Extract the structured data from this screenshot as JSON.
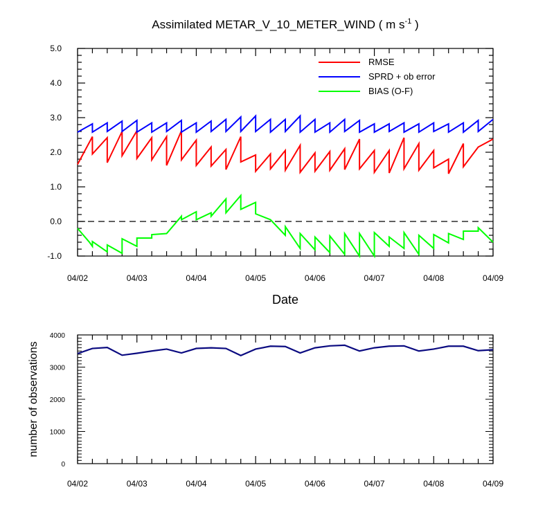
{
  "title": "Assimilated METAR_V_10_METER_WIND ( m s",
  "title_unit_exp": "-1",
  "title_close": " )",
  "top_panel": {
    "xlabel": "Date",
    "legend": [
      {
        "label": "RMSE",
        "color": "#ff0000"
      },
      {
        "label": "SPRD + ob error",
        "color": "#0000ff"
      },
      {
        "label": "BIAS (O-F)",
        "color": "#00ff00"
      }
    ],
    "y_ticks": [
      "5.0",
      "4.0",
      "3.0",
      "2.0",
      "1.0",
      "0.0",
      "-1.0"
    ]
  },
  "bottom_panel": {
    "ylabel": "number of observations",
    "y_ticks": [
      "4000",
      "3000",
      "2000",
      "1000",
      "0"
    ]
  },
  "x_tick_labels": [
    "04/02",
    "04/03",
    "04/04",
    "04/05",
    "04/06",
    "04/07",
    "04/08",
    "04/09"
  ],
  "chart_data": [
    {
      "type": "line",
      "title": "Assimilated METAR_V_10_METER_WIND ( m s-1 )",
      "xlabel": "Date",
      "ylabel": "",
      "x_unit": "days",
      "xlim": [
        0,
        7
      ],
      "ylim": [
        -1.0,
        5.0
      ],
      "grid": false,
      "legend_position": "top-right",
      "reference_lines": [
        {
          "y": 0.0,
          "style": "dashed"
        }
      ],
      "series": [
        {
          "name": "RMSE",
          "color": "#ff0000",
          "points": [
            [
              0.0,
              1.65
            ],
            [
              0.25,
              2.45
            ],
            [
              0.25,
              1.95
            ],
            [
              0.5,
              2.42
            ],
            [
              0.5,
              1.7
            ],
            [
              0.75,
              2.6
            ],
            [
              0.75,
              1.9
            ],
            [
              1.0,
              2.62
            ],
            [
              1.0,
              1.82
            ],
            [
              1.25,
              2.42
            ],
            [
              1.25,
              1.78
            ],
            [
              1.5,
              2.45
            ],
            [
              1.5,
              1.62
            ],
            [
              1.75,
              2.62
            ],
            [
              1.75,
              1.78
            ],
            [
              2.0,
              2.35
            ],
            [
              2.0,
              1.62
            ],
            [
              2.25,
              2.15
            ],
            [
              2.25,
              1.6
            ],
            [
              2.5,
              2.08
            ],
            [
              2.5,
              1.5
            ],
            [
              2.75,
              2.45
            ],
            [
              2.75,
              1.72
            ],
            [
              3.0,
              1.92
            ],
            [
              3.0,
              1.45
            ],
            [
              3.25,
              1.95
            ],
            [
              3.25,
              1.52
            ],
            [
              3.5,
              2.05
            ],
            [
              3.5,
              1.48
            ],
            [
              3.75,
              2.2
            ],
            [
              3.75,
              1.42
            ],
            [
              4.0,
              1.98
            ],
            [
              4.0,
              1.45
            ],
            [
              4.25,
              2.02
            ],
            [
              4.25,
              1.48
            ],
            [
              4.5,
              2.1
            ],
            [
              4.5,
              1.5
            ],
            [
              4.75,
              2.38
            ],
            [
              4.75,
              1.52
            ],
            [
              5.0,
              2.05
            ],
            [
              5.0,
              1.42
            ],
            [
              5.25,
              2.05
            ],
            [
              5.25,
              1.4
            ],
            [
              5.5,
              2.42
            ],
            [
              5.5,
              1.52
            ],
            [
              5.75,
              2.25
            ],
            [
              5.75,
              1.48
            ],
            [
              6.0,
              2.05
            ],
            [
              6.0,
              1.55
            ],
            [
              6.25,
              1.8
            ],
            [
              6.25,
              1.38
            ],
            [
              6.5,
              2.25
            ],
            [
              6.5,
              1.58
            ],
            [
              6.75,
              2.15
            ],
            [
              7.0,
              2.38
            ]
          ]
        },
        {
          "name": "SPRD + ob error",
          "color": "#0000ff",
          "points": [
            [
              0.0,
              2.58
            ],
            [
              0.25,
              2.82
            ],
            [
              0.25,
              2.58
            ],
            [
              0.5,
              2.85
            ],
            [
              0.5,
              2.6
            ],
            [
              0.75,
              2.9
            ],
            [
              0.75,
              2.6
            ],
            [
              1.0,
              2.92
            ],
            [
              1.0,
              2.58
            ],
            [
              1.25,
              2.85
            ],
            [
              1.25,
              2.58
            ],
            [
              1.5,
              2.85
            ],
            [
              1.5,
              2.6
            ],
            [
              1.75,
              2.92
            ],
            [
              1.75,
              2.58
            ],
            [
              2.0,
              2.85
            ],
            [
              2.0,
              2.58
            ],
            [
              2.25,
              2.9
            ],
            [
              2.25,
              2.6
            ],
            [
              2.5,
              2.95
            ],
            [
              2.5,
              2.6
            ],
            [
              2.75,
              3.02
            ],
            [
              2.75,
              2.6
            ],
            [
              3.0,
              3.05
            ],
            [
              3.0,
              2.6
            ],
            [
              3.25,
              2.95
            ],
            [
              3.25,
              2.58
            ],
            [
              3.5,
              2.95
            ],
            [
              3.5,
              2.6
            ],
            [
              3.75,
              3.05
            ],
            [
              3.75,
              2.58
            ],
            [
              4.0,
              2.95
            ],
            [
              4.0,
              2.58
            ],
            [
              4.25,
              2.85
            ],
            [
              4.25,
              2.58
            ],
            [
              4.5,
              2.95
            ],
            [
              4.5,
              2.6
            ],
            [
              4.75,
              2.92
            ],
            [
              4.75,
              2.58
            ],
            [
              5.0,
              2.82
            ],
            [
              5.0,
              2.58
            ],
            [
              5.25,
              2.82
            ],
            [
              5.25,
              2.6
            ],
            [
              5.5,
              2.85
            ],
            [
              5.5,
              2.58
            ],
            [
              5.75,
              2.82
            ],
            [
              5.75,
              2.58
            ],
            [
              6.0,
              2.85
            ],
            [
              6.0,
              2.6
            ],
            [
              6.25,
              2.82
            ],
            [
              6.25,
              2.58
            ],
            [
              6.5,
              2.85
            ],
            [
              6.5,
              2.58
            ],
            [
              6.75,
              2.92
            ],
            [
              6.75,
              2.6
            ],
            [
              7.0,
              2.95
            ]
          ]
        },
        {
          "name": "BIAS (O-F)",
          "color": "#00ff00",
          "points": [
            [
              0.0,
              -0.2
            ],
            [
              0.2,
              -0.6
            ],
            [
              0.25,
              -0.72
            ],
            [
              0.25,
              -0.58
            ],
            [
              0.5,
              -0.88
            ],
            [
              0.5,
              -0.68
            ],
            [
              0.75,
              -0.92
            ],
            [
              0.75,
              -0.5
            ],
            [
              1.0,
              -0.72
            ],
            [
              1.0,
              -0.48
            ],
            [
              1.25,
              -0.48
            ],
            [
              1.25,
              -0.38
            ],
            [
              1.5,
              -0.35
            ],
            [
              1.75,
              0.15
            ],
            [
              1.75,
              0.05
            ],
            [
              2.0,
              0.28
            ],
            [
              2.0,
              0.05
            ],
            [
              2.25,
              0.25
            ],
            [
              2.25,
              0.15
            ],
            [
              2.5,
              0.65
            ],
            [
              2.5,
              0.25
            ],
            [
              2.75,
              0.75
            ],
            [
              2.75,
              0.35
            ],
            [
              3.0,
              0.55
            ],
            [
              3.0,
              0.22
            ],
            [
              3.25,
              0.05
            ],
            [
              3.5,
              -0.4
            ],
            [
              3.5,
              -0.15
            ],
            [
              3.75,
              -0.78
            ],
            [
              3.75,
              -0.35
            ],
            [
              4.0,
              -0.82
            ],
            [
              4.0,
              -0.45
            ],
            [
              4.25,
              -0.9
            ],
            [
              4.25,
              -0.42
            ],
            [
              4.5,
              -0.95
            ],
            [
              4.5,
              -0.35
            ],
            [
              4.75,
              -1.0
            ],
            [
              4.75,
              -0.35
            ],
            [
              5.0,
              -1.0
            ],
            [
              5.0,
              -0.32
            ],
            [
              5.25,
              -0.72
            ],
            [
              5.25,
              -0.45
            ],
            [
              5.5,
              -0.78
            ],
            [
              5.5,
              -0.32
            ],
            [
              5.75,
              -0.95
            ],
            [
              5.75,
              -0.4
            ],
            [
              6.0,
              -0.78
            ],
            [
              6.0,
              -0.38
            ],
            [
              6.25,
              -0.62
            ],
            [
              6.25,
              -0.35
            ],
            [
              6.5,
              -0.52
            ],
            [
              6.5,
              -0.28
            ],
            [
              6.75,
              -0.28
            ],
            [
              6.75,
              -0.18
            ],
            [
              7.0,
              -0.6
            ]
          ]
        }
      ]
    },
    {
      "type": "line",
      "xlabel": "",
      "ylabel": "number of observations",
      "x_unit": "days",
      "xlim": [
        0,
        7
      ],
      "ylim": [
        0,
        4000
      ],
      "grid": false,
      "series": [
        {
          "name": "",
          "color": "#0a0a80",
          "points": [
            [
              0.0,
              3420
            ],
            [
              0.25,
              3580
            ],
            [
              0.5,
              3610
            ],
            [
              0.75,
              3370
            ],
            [
              1.0,
              3430
            ],
            [
              1.25,
              3500
            ],
            [
              1.5,
              3560
            ],
            [
              1.75,
              3440
            ],
            [
              2.0,
              3580
            ],
            [
              2.25,
              3600
            ],
            [
              2.5,
              3580
            ],
            [
              2.75,
              3360
            ],
            [
              3.0,
              3560
            ],
            [
              3.25,
              3650
            ],
            [
              3.5,
              3640
            ],
            [
              3.75,
              3440
            ],
            [
              4.0,
              3600
            ],
            [
              4.25,
              3660
            ],
            [
              4.5,
              3680
            ],
            [
              4.75,
              3500
            ],
            [
              5.0,
              3600
            ],
            [
              5.25,
              3650
            ],
            [
              5.5,
              3660
            ],
            [
              5.75,
              3500
            ],
            [
              6.0,
              3560
            ],
            [
              6.25,
              3650
            ],
            [
              6.5,
              3650
            ],
            [
              6.75,
              3510
            ],
            [
              7.0,
              3540
            ]
          ]
        }
      ]
    }
  ]
}
